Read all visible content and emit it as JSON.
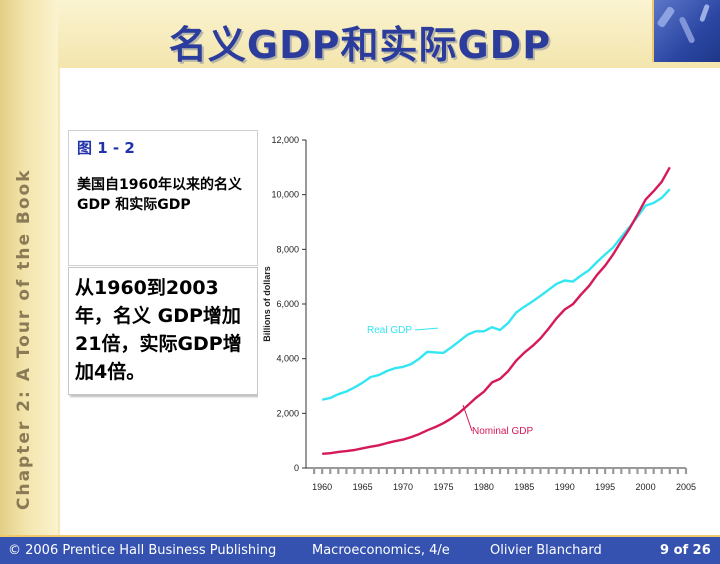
{
  "title": "名义GDP和实际GDP",
  "chapter": "Chapter 2: A Tour of the Book",
  "caption": {
    "label": "图 1 - 2",
    "desc": "美国自1960年以来的名义GDP 和实际GDP"
  },
  "note": "从1960到2003年，名义 GDP增加21倍，实际GDP增加4倍。",
  "footer": {
    "copyright": "© 2006 Prentice Hall Business Publishing",
    "course": "Macroeconomics, 4/e",
    "author": "Olivier Blanchard",
    "page": "9 of 26"
  },
  "colors": {
    "title": "#2b3c9c",
    "real": "#33e6f2",
    "nominal": "#d6195a",
    "footer": "#3552b0"
  },
  "chart_data": {
    "type": "line",
    "ylabel": "Billions of dollars",
    "xlim": [
      1958,
      2005
    ],
    "ylim": [
      0,
      12000
    ],
    "xticks": [
      "1960",
      "1965",
      "1970",
      "1975",
      "1980",
      "1985",
      "1990",
      "1995",
      "2000",
      "2005"
    ],
    "yticks": [
      "0",
      "2,000",
      "4,000",
      "6,000",
      "8,000",
      "10,000",
      "12,000"
    ],
    "x": [
      1960,
      1961,
      1962,
      1963,
      1964,
      1965,
      1966,
      1967,
      1968,
      1969,
      1970,
      1971,
      1972,
      1973,
      1974,
      1975,
      1976,
      1977,
      1978,
      1979,
      1980,
      1981,
      1982,
      1983,
      1984,
      1985,
      1986,
      1987,
      1988,
      1989,
      1990,
      1991,
      1992,
      1993,
      1994,
      1995,
      1996,
      1997,
      1998,
      1999,
      2000,
      2001,
      2002,
      2003
    ],
    "series": [
      {
        "name": "Real GDP",
        "color": "#33e6f2",
        "values": [
          2500,
          2560,
          2700,
          2800,
          2950,
          3120,
          3330,
          3400,
          3550,
          3650,
          3700,
          3800,
          4000,
          4250,
          4230,
          4210,
          4420,
          4650,
          4880,
          5000,
          5000,
          5150,
          5050,
          5300,
          5690,
          5900,
          6090,
          6300,
          6520,
          6740,
          6860,
          6820,
          7040,
          7240,
          7540,
          7810,
          8070,
          8450,
          8810,
          9200,
          9600,
          9700,
          9880,
          10200
        ]
      },
      {
        "name": "Nominal GDP",
        "color": "#d6195a",
        "values": [
          520,
          540,
          590,
          620,
          660,
          720,
          780,
          830,
          910,
          980,
          1040,
          1130,
          1240,
          1380,
          1500,
          1640,
          1820,
          2030,
          2290,
          2560,
          2790,
          3130,
          3260,
          3540,
          3930,
          4220,
          4460,
          4740,
          5100,
          5480,
          5800,
          5990,
          6340,
          6660,
          7070,
          7400,
          7820,
          8300,
          8750,
          9270,
          9820,
          10130,
          10470,
          11000
        ]
      }
    ],
    "annotations": [
      {
        "text": "Real GDP",
        "series": "Real GDP"
      },
      {
        "text": "Nominal GDP",
        "series": "Nominal GDP"
      }
    ]
  }
}
